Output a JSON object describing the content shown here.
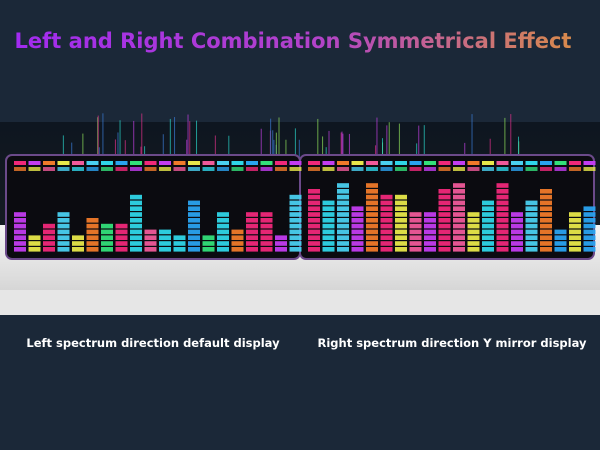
{
  "header": {
    "title": "Left and Right Combination Symmetrical Effect"
  },
  "captions": {
    "left": "Left spectrum direction default display",
    "right": "Right spectrum direction Y mirror display"
  }
}
